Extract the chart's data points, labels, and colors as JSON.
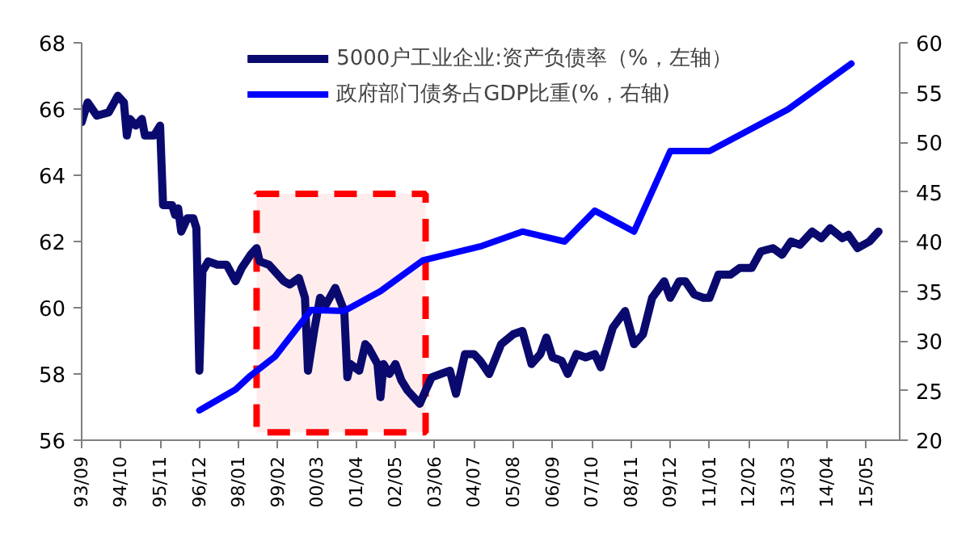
{
  "chart_data": {
    "type": "line",
    "xlim": [
      "1993-09",
      "2016-04"
    ],
    "xticks": [
      {
        "value": "1993-09",
        "label": "93/09"
      },
      {
        "value": "1994-10",
        "label": "94/10"
      },
      {
        "value": "1995-11",
        "label": "95/11"
      },
      {
        "value": "1996-12",
        "label": "96/12"
      },
      {
        "value": "1998-01",
        "label": "98/01"
      },
      {
        "value": "1999-02",
        "label": "99/02"
      },
      {
        "value": "2000-03",
        "label": "00/03"
      },
      {
        "value": "2001-04",
        "label": "01/04"
      },
      {
        "value": "2002-05",
        "label": "02/05"
      },
      {
        "value": "2003-06",
        "label": "03/06"
      },
      {
        "value": "2004-07",
        "label": "04/07"
      },
      {
        "value": "2005-08",
        "label": "05/08"
      },
      {
        "value": "2006-09",
        "label": "06/09"
      },
      {
        "value": "2007-10",
        "label": "07/10"
      },
      {
        "value": "2008-11",
        "label": "08/11"
      },
      {
        "value": "2009-12",
        "label": "09/12"
      },
      {
        "value": "2011-01",
        "label": "11/01"
      },
      {
        "value": "2012-02",
        "label": "12/02"
      },
      {
        "value": "2013-03",
        "label": "13/03"
      },
      {
        "value": "2014-04",
        "label": "14/04"
      },
      {
        "value": "2015-05",
        "label": "15/05"
      }
    ],
    "ylim": [
      56,
      68
    ],
    "yticks": [
      56,
      58,
      60,
      62,
      64,
      66,
      68
    ],
    "y2lim": [
      20,
      60
    ],
    "y2ticks": [
      20,
      25,
      30,
      35,
      40,
      45,
      50,
      55,
      60
    ],
    "grid": false,
    "legend": "top",
    "marker": "none",
    "line_style": "solid",
    "bands": [
      {
        "axis": "x",
        "from": "1998-07",
        "to": "2003-03",
        "label": null,
        "color": "#ff0000"
      }
    ],
    "series": [
      {
        "name": "5000户工业企业:资产负债率（%，左轴）",
        "color": "#0a0a6e",
        "x": [
          "1993-09",
          "1993-11",
          "1994-02",
          "1994-06",
          "1994-09",
          "1994-11",
          "1994-12",
          "1995-01",
          "1995-03",
          "1995-05",
          "1995-06",
          "1995-09",
          "1995-11",
          "1995-12",
          "1996-03",
          "1996-04",
          "1996-05",
          "1996-06",
          "1996-08",
          "1996-10",
          "1996-11",
          "1996-12",
          "1997-01",
          "1997-03",
          "1997-06",
          "1997-09",
          "1997-12",
          "1998-02",
          "1998-05",
          "1998-07",
          "1998-08",
          "1998-11",
          "1999-04",
          "1999-06",
          "1999-09",
          "1999-11",
          "1999-12",
          "2000-02",
          "2000-04",
          "2000-06",
          "2000-09",
          "2000-12",
          "2001-01",
          "2001-02",
          "2001-05",
          "2001-07",
          "2001-08",
          "2001-11",
          "2001-12",
          "2002-01",
          "2002-03",
          "2002-05",
          "2002-07",
          "2002-09",
          "2003-01",
          "2003-03",
          "2003-05",
          "2003-08",
          "2003-11",
          "2004-01",
          "2004-04",
          "2004-07",
          "2004-09",
          "2004-12",
          "2005-04",
          "2005-08",
          "2005-11",
          "2006-02",
          "2006-05",
          "2006-07",
          "2006-09",
          "2006-12",
          "2007-02",
          "2007-05",
          "2007-08",
          "2007-11",
          "2008-01",
          "2008-05",
          "2008-09",
          "2008-12",
          "2009-03",
          "2009-06",
          "2009-10",
          "2009-12",
          "2010-03",
          "2010-05",
          "2010-08",
          "2010-11",
          "2011-01",
          "2011-04",
          "2011-08",
          "2011-11",
          "2012-03",
          "2012-06",
          "2012-10",
          "2013-01",
          "2013-04",
          "2013-07",
          "2013-11",
          "2014-02",
          "2014-05",
          "2014-09",
          "2014-11",
          "2015-02",
          "2015-06",
          "2015-09"
        ],
        "values": [
          65.6,
          66.2,
          65.8,
          65.9,
          66.4,
          66.2,
          65.2,
          65.7,
          65.5,
          65.7,
          65.2,
          65.2,
          65.5,
          63.1,
          63.1,
          62.8,
          63.0,
          62.3,
          62.7,
          62.7,
          62.4,
          58.1,
          61.1,
          61.4,
          61.3,
          61.3,
          60.8,
          61.2,
          61.6,
          61.8,
          61.4,
          61.3,
          60.8,
          60.7,
          60.9,
          60.3,
          58.1,
          59.3,
          60.3,
          60.1,
          60.6,
          59.9,
          57.9,
          58.3,
          58.1,
          58.9,
          58.8,
          58.3,
          57.3,
          58.3,
          58.0,
          58.3,
          57.8,
          57.5,
          57.1,
          57.5,
          57.9,
          58.0,
          58.1,
          57.4,
          58.6,
          58.6,
          58.4,
          58.0,
          58.9,
          59.2,
          59.3,
          58.3,
          58.6,
          59.1,
          58.5,
          58.4,
          58.0,
          58.6,
          58.5,
          58.6,
          58.2,
          59.4,
          59.9,
          58.9,
          59.2,
          60.3,
          60.8,
          60.3,
          60.8,
          60.8,
          60.4,
          60.3,
          60.3,
          61.0,
          61.0,
          61.2,
          61.2,
          61.7,
          61.8,
          61.6,
          62.0,
          61.9,
          62.3,
          62.1,
          62.4,
          62.1,
          62.2,
          61.8,
          62.0,
          62.3
        ]
      },
      {
        "name": "政府部门债务占GDP比重(%，右轴)",
        "color": "#0000ff",
        "axis": "y2",
        "x": [
          "1996-12",
          "1997-12",
          "1998-05",
          "1999-01",
          "2000-01",
          "2000-12",
          "2001-12",
          "2003-02",
          "2004-09",
          "2005-11",
          "2007-01",
          "2007-11",
          "2008-12",
          "2009-12",
          "2011-01",
          "2013-03",
          "2014-12"
        ],
        "values": [
          23.0,
          25.1,
          26.5,
          28.4,
          33.1,
          33.0,
          35.0,
          38.1,
          39.5,
          41.0,
          40.0,
          43.1,
          41.0,
          49.1,
          49.1,
          53.3,
          57.9
        ]
      }
    ]
  }
}
